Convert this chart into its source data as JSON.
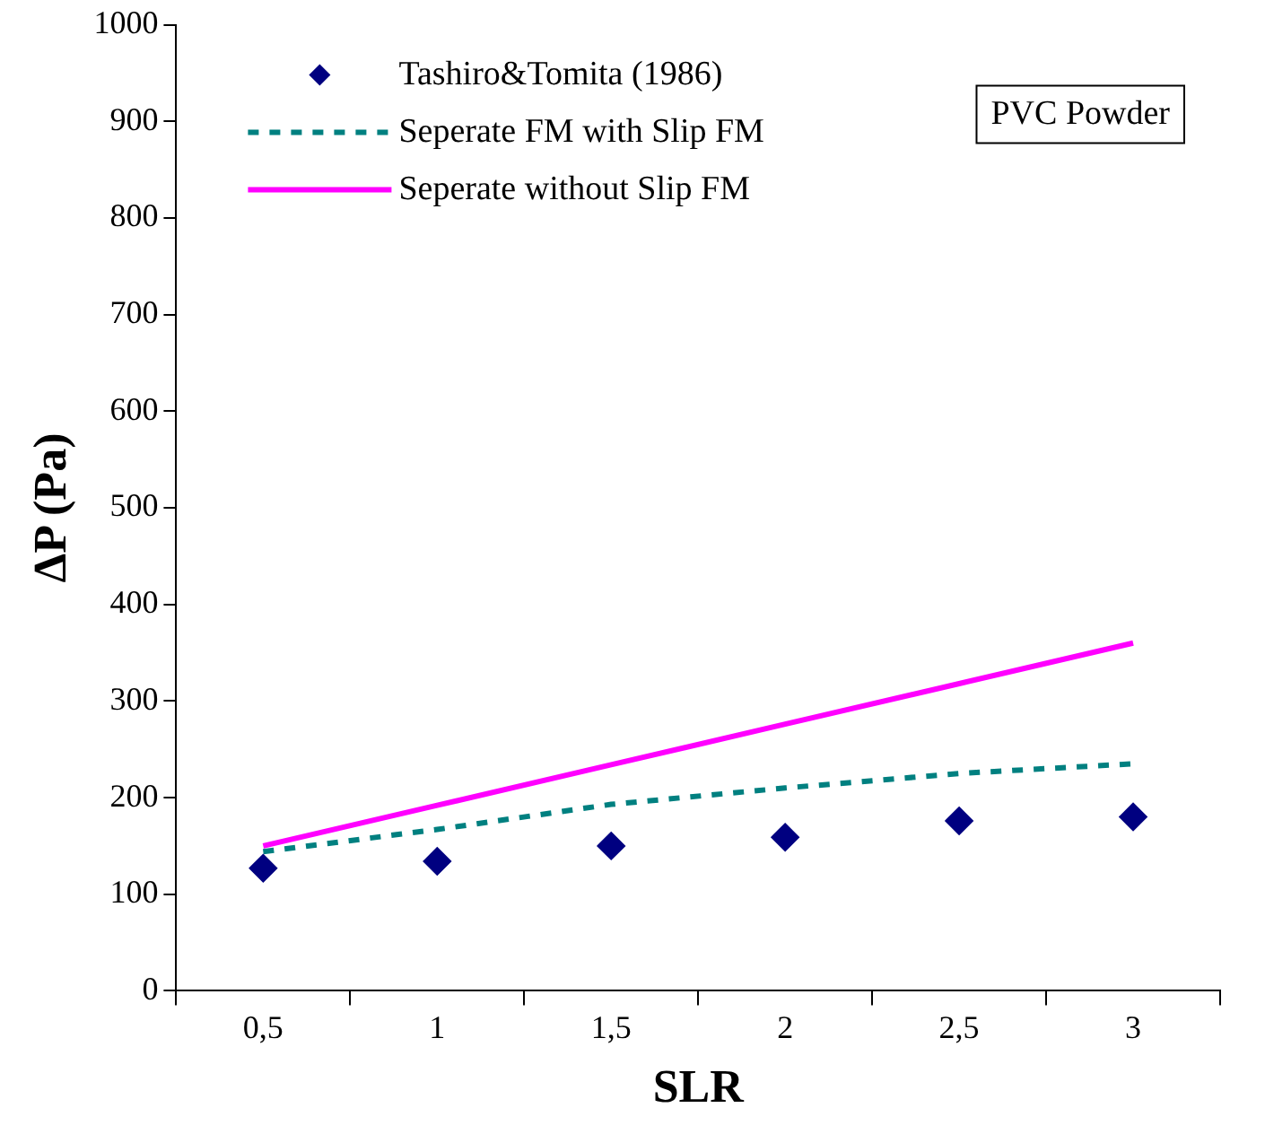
{
  "chart_data": {
    "type": "line",
    "xlabel": "SLR",
    "ylabel": "ΔP (Pa)",
    "categories": [
      "0,5",
      "1",
      "1,5",
      "2",
      "2,5",
      "3"
    ],
    "ylim": [
      0,
      1000
    ],
    "yticks": [
      0,
      100,
      200,
      300,
      400,
      500,
      600,
      700,
      800,
      900,
      1000
    ],
    "grid": false,
    "legend": "top left",
    "annotations": [
      "PVC Powder"
    ],
    "series": [
      {
        "name": "Tashiro&Tomita (1986)",
        "type": "scatter",
        "marker": "diamond",
        "color": "#000080",
        "values": [
          127,
          134,
          150,
          159,
          176,
          180
        ]
      },
      {
        "name": "Seperate FM with Slip FM",
        "type": "line",
        "line_style": "dashed",
        "marker": "none",
        "color": "#008080",
        "values": [
          144,
          167,
          193,
          210,
          225,
          235
        ]
      },
      {
        "name": "Seperate without Slip FM",
        "type": "line",
        "line_style": "solid",
        "marker": "none",
        "color": "#ff00ff",
        "values": [
          150,
          192,
          234,
          276,
          318,
          360
        ]
      }
    ]
  }
}
